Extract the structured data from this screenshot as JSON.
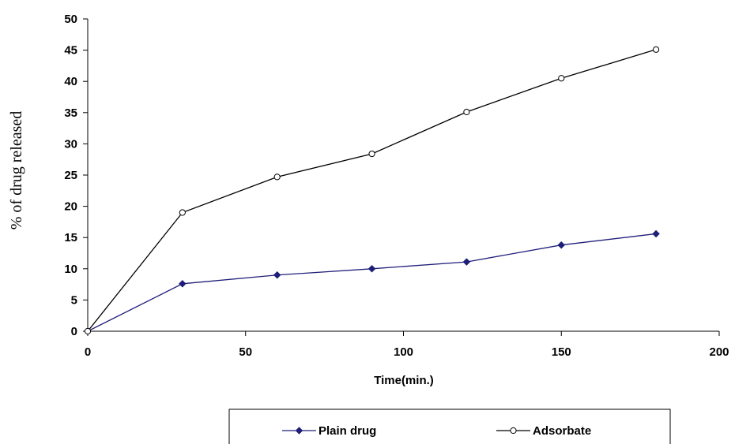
{
  "chart_data": {
    "type": "line",
    "title": "",
    "xlabel": "Time(min.)",
    "ylabel": "% of drug released",
    "xlim": [
      0,
      200
    ],
    "ylim": [
      0,
      50
    ],
    "xticks": [
      0,
      50,
      100,
      150,
      200
    ],
    "yticks": [
      0,
      5,
      10,
      15,
      20,
      25,
      30,
      35,
      40,
      45,
      50
    ],
    "x": [
      0,
      30,
      60,
      90,
      120,
      150,
      180
    ],
    "grid": false,
    "legend_position": "bottom",
    "series": [
      {
        "name": "Plain drug",
        "values": [
          0,
          7.6,
          9.0,
          10.0,
          11.1,
          13.8,
          15.6
        ],
        "color": "#1f1f7a",
        "marker": "filled-diamond"
      },
      {
        "name": "Adsorbate",
        "values": [
          0,
          19.0,
          24.7,
          28.4,
          35.1,
          40.5,
          45.1
        ],
        "color": "#000000",
        "marker": "open-circle"
      }
    ]
  }
}
